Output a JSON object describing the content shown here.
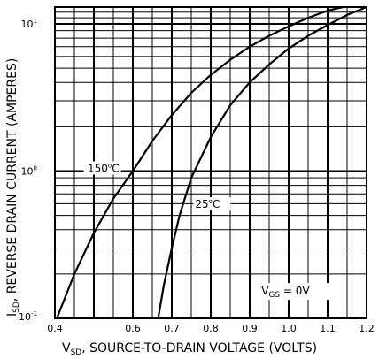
{
  "chart_data": {
    "type": "line",
    "xlabel": {
      "main": "V",
      "sub": "SD",
      "rest": ",  SOURCE-TO-DRAIN VOLTAGE (VOLTS)"
    },
    "ylabel": {
      "main": "I",
      "sub": "SD",
      "rest": ",  REVERSE DRAIN CURRENT (AMPERES)"
    },
    "xlim": [
      0.4,
      1.2
    ],
    "ylim": [
      0.1,
      13
    ],
    "yscale": "log",
    "grid": true,
    "x_ticks": [
      "0.4",
      "0.6",
      "0.7",
      "0.8",
      "0.9",
      "1.0",
      "1.1",
      "1.2"
    ],
    "y_ticks": [
      {
        "value": 0.1,
        "base": "10",
        "exp": "-1"
      },
      {
        "value": 1,
        "base": "10",
        "exp": "0"
      },
      {
        "value": 10,
        "base": "10",
        "exp": "1"
      }
    ],
    "series": [
      {
        "name": "150°C",
        "label": {
          "value": "150",
          "sup": "o",
          "unit": "C"
        },
        "x": [
          0.405,
          0.45,
          0.5,
          0.55,
          0.6,
          0.65,
          0.7,
          0.75,
          0.8,
          0.85,
          0.9,
          0.95,
          1.0,
          1.05,
          1.1,
          1.14
        ],
        "y": [
          0.1,
          0.2,
          0.38,
          0.65,
          1.0,
          1.6,
          2.4,
          3.4,
          4.5,
          5.7,
          7.0,
          8.3,
          9.6,
          11.0,
          12.3,
          13.0
        ]
      },
      {
        "name": "25°C",
        "label": {
          "value": "25",
          "sup": "o",
          "unit": "C"
        },
        "x": [
          0.665,
          0.68,
          0.7,
          0.72,
          0.75,
          0.8,
          0.85,
          0.9,
          0.95,
          1.0,
          1.05,
          1.1,
          1.15,
          1.2
        ],
        "y": [
          0.1,
          0.17,
          0.3,
          0.5,
          0.9,
          1.7,
          2.8,
          4.0,
          5.3,
          6.8,
          8.3,
          9.8,
          11.5,
          13.0
        ]
      }
    ],
    "annotations": [
      {
        "main": "V",
        "sub": "GS",
        "rest": " = 0V"
      }
    ]
  }
}
